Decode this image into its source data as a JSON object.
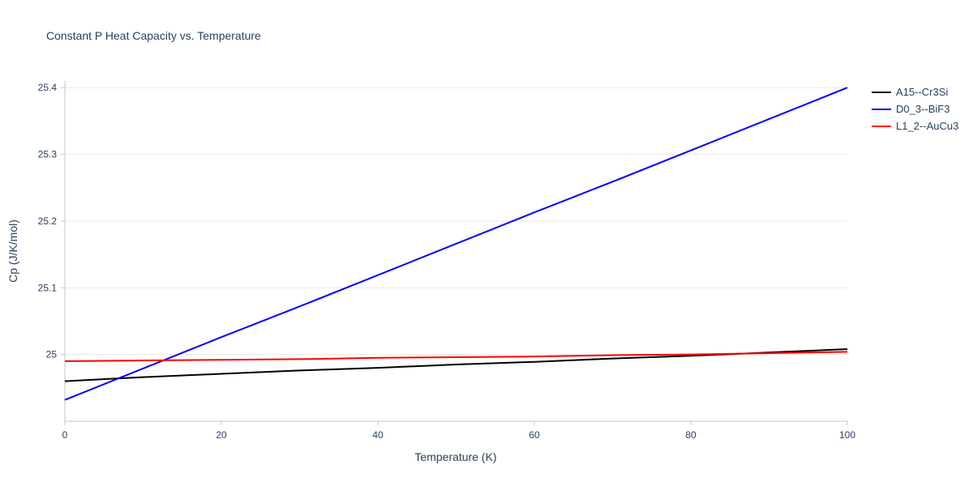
{
  "chart_data": {
    "type": "line",
    "title": "Constant P Heat Capacity vs. Temperature",
    "xlabel": "Temperature (K)",
    "ylabel": "Cp (J/K/mol)",
    "xlim": [
      0,
      100
    ],
    "ylim": [
      24.9,
      25.41
    ],
    "xticks": [
      0,
      20,
      40,
      60,
      80,
      100
    ],
    "xtick_labels": [
      "0",
      "20",
      "40",
      "60",
      "80",
      "100"
    ],
    "ytick_values": [
      25,
      25.1,
      25.2,
      25.3,
      25.4
    ],
    "ytick_labels": [
      "25",
      "25.1",
      "25.2",
      "25.3",
      "25.4"
    ],
    "grid": "horizontal",
    "legend_position": "top-right",
    "font_color": "#2a3f5f",
    "grid_color": "#e8e8e8",
    "axis_color": "#c4c4c4",
    "x": [
      0,
      10,
      20,
      30,
      40,
      50,
      60,
      70,
      80,
      90,
      100
    ],
    "series": [
      {
        "name": "A15--Cr3Si",
        "color": "#000000",
        "values": [
          24.96,
          24.966,
          24.971,
          24.976,
          24.98,
          24.985,
          24.989,
          24.994,
          24.998,
          25.003,
          25.008
        ]
      },
      {
        "name": "D0_3--BiF3",
        "color": "#0000ff",
        "values": [
          24.932,
          24.979,
          25.026,
          25.072,
          25.119,
          25.166,
          25.213,
          25.259,
          25.306,
          25.353,
          25.4
        ]
      },
      {
        "name": "L1_2--AuCu3",
        "color": "#ff0000",
        "values": [
          24.99,
          24.991,
          24.992,
          24.993,
          24.995,
          24.996,
          24.997,
          24.999,
          25.0,
          25.002,
          25.004
        ]
      }
    ]
  }
}
